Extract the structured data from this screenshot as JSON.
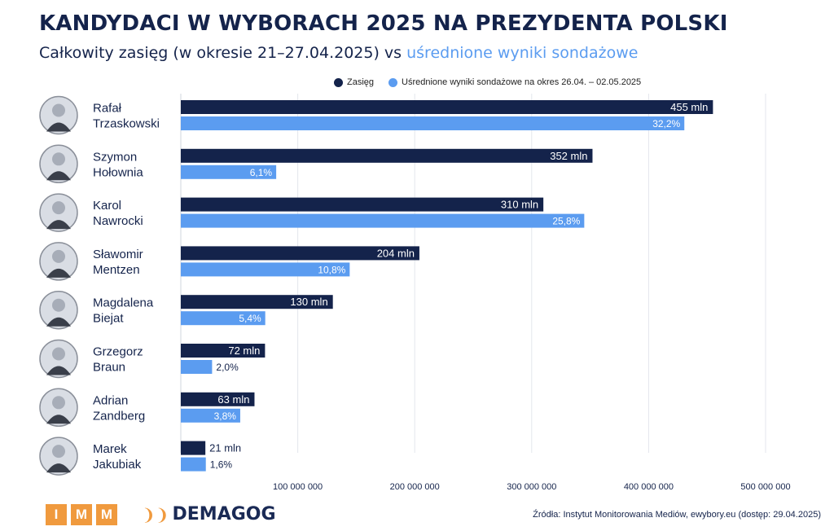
{
  "title": "KANDYDACI W WYBORACH 2025 NA PREZYDENTA POLSKI",
  "subtitle_main": "Całkowity zasięg (w okresie 21–27.04.2025) vs ",
  "subtitle_accent": "uśrednione wyniki sondażowe",
  "colors": {
    "reach": "#14234b",
    "polls": "#5b9cf0",
    "orange": "#f09a3e"
  },
  "footer": {
    "imm_letters": [
      "I",
      "M",
      "M"
    ],
    "demagog": "DEMAGOG",
    "source": "Źródła: Instytut Monitorowania Mediów, ewybory.eu (dostęp: 29.04.2025)"
  },
  "chart_data": {
    "type": "bar",
    "orientation": "horizontal",
    "categories": [
      "Rafał Trzaskowski",
      "Szymon Hołownia",
      "Karol Nawrocki",
      "Sławomir Mentzen",
      "Magdalena Biejat",
      "Grzegorz Braun",
      "Adrian Zandberg",
      "Marek Jakubiak"
    ],
    "category_lines": [
      [
        "Rafał",
        "Trzaskowski"
      ],
      [
        "Szymon",
        "Hołownia"
      ],
      [
        "Karol",
        "Nawrocki"
      ],
      [
        "Sławomir",
        "Mentzen"
      ],
      [
        "Magdalena",
        "Biejat"
      ],
      [
        "Grzegorz",
        "Braun"
      ],
      [
        "Adrian",
        "Zandberg"
      ],
      [
        "Marek",
        "Jakubiak"
      ]
    ],
    "series": [
      {
        "name": "Zasięg",
        "values": [
          455000000,
          352000000,
          310000000,
          204000000,
          130000000,
          72000000,
          63000000,
          21000000
        ],
        "labels": [
          "455 mln",
          "352 mln",
          "310 mln",
          "204 mln",
          "130 mln",
          "72 mln",
          "63 mln",
          "21 mln"
        ]
      },
      {
        "name": "Uśrednione wyniki sondażowe na okres 26.04. – 02.05.2025",
        "values": [
          32.2,
          6.1,
          25.8,
          10.8,
          5.4,
          2.0,
          3.8,
          1.6
        ],
        "labels": [
          "32,2%",
          "6,1%",
          "25,8%",
          "10,8%",
          "5,4%",
          "2,0%",
          "3,8%",
          "1,6%"
        ]
      }
    ],
    "xlim": [
      0,
      500000000
    ],
    "x_ticks": [
      100000000,
      200000000,
      300000000,
      400000000,
      500000000
    ],
    "x_tick_labels": [
      "100 000 000",
      "200 000 000",
      "300 000 000",
      "400 000 000",
      "500 000 000"
    ],
    "grid": true,
    "legend": "top"
  }
}
